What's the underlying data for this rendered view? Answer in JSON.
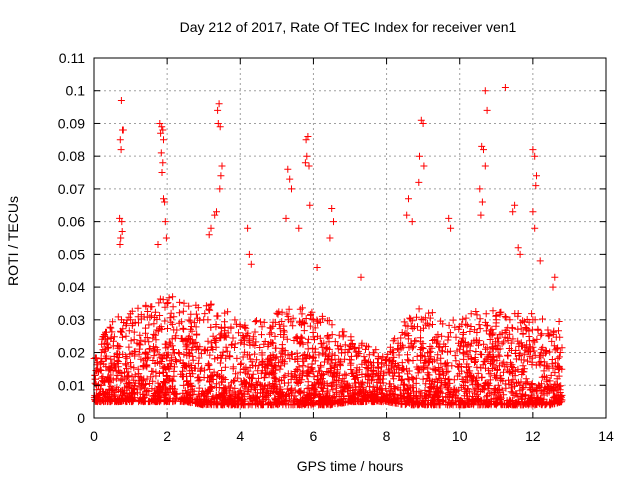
{
  "chart_data": {
    "type": "scatter",
    "title": "Day 212 of 2017, Rate Of TEC Index for receiver ven1",
    "xlabel": "GPS time / hours",
    "ylabel": "ROTI / TECUs",
    "xlim": [
      0,
      14
    ],
    "ylim": [
      0,
      0.11
    ],
    "x_ticks": [
      0,
      2,
      4,
      6,
      8,
      10,
      12,
      14
    ],
    "x_tick_labels": [
      "0",
      "2",
      "4",
      "6",
      "8",
      "10",
      "12",
      "14"
    ],
    "y_ticks": [
      0,
      0.01,
      0.02,
      0.03,
      0.04,
      0.05,
      0.06,
      0.07,
      0.08,
      0.09,
      0.1,
      0.11
    ],
    "y_tick_labels": [
      "0",
      "0.01",
      "0.02",
      "0.03",
      "0.04",
      "0.05",
      "0.06",
      "0.07",
      "0.08",
      "0.09",
      "0.1",
      "0.11"
    ],
    "grid": true,
    "marker": "plus",
    "marker_color": "#ff0000",
    "series": [
      {
        "name": "ROTI",
        "note": "dense band of roughly 3000+ points between 0.003 and 0.035 across 0-12.8 h; only representative points listed, remainder generated from the envelope below",
        "points": [
          [
            0.75,
            0.097
          ],
          [
            0.78,
            0.088
          ],
          [
            0.8,
            0.088
          ],
          [
            0.72,
            0.085
          ],
          [
            0.74,
            0.082
          ],
          [
            0.7,
            0.061
          ],
          [
            0.76,
            0.06
          ],
          [
            0.73,
            0.055
          ],
          [
            0.71,
            0.053
          ],
          [
            0.77,
            0.057
          ],
          [
            1.8,
            0.09
          ],
          [
            1.85,
            0.089
          ],
          [
            1.88,
            0.088
          ],
          [
            1.82,
            0.087
          ],
          [
            1.9,
            0.085
          ],
          [
            1.84,
            0.081
          ],
          [
            1.88,
            0.078
          ],
          [
            1.86,
            0.075
          ],
          [
            1.9,
            0.067
          ],
          [
            1.93,
            0.066
          ],
          [
            1.95,
            0.06
          ],
          [
            1.75,
            0.053
          ],
          [
            1.98,
            0.055
          ],
          [
            3.42,
            0.096
          ],
          [
            3.38,
            0.094
          ],
          [
            3.4,
            0.09
          ],
          [
            3.45,
            0.089
          ],
          [
            3.5,
            0.077
          ],
          [
            3.47,
            0.074
          ],
          [
            3.44,
            0.07
          ],
          [
            3.3,
            0.062
          ],
          [
            3.2,
            0.058
          ],
          [
            3.15,
            0.056
          ],
          [
            3.35,
            0.063
          ],
          [
            4.2,
            0.058
          ],
          [
            4.25,
            0.05
          ],
          [
            4.3,
            0.047
          ],
          [
            5.3,
            0.076
          ],
          [
            5.35,
            0.073
          ],
          [
            5.4,
            0.07
          ],
          [
            5.25,
            0.061
          ],
          [
            5.85,
            0.086
          ],
          [
            5.8,
            0.085
          ],
          [
            5.82,
            0.08
          ],
          [
            5.78,
            0.078
          ],
          [
            5.88,
            0.077
          ],
          [
            5.9,
            0.065
          ],
          [
            5.6,
            0.058
          ],
          [
            6.5,
            0.064
          ],
          [
            6.55,
            0.06
          ],
          [
            6.45,
            0.055
          ],
          [
            6.1,
            0.046
          ],
          [
            7.3,
            0.043
          ],
          [
            8.95,
            0.091
          ],
          [
            9.0,
            0.09
          ],
          [
            8.9,
            0.08
          ],
          [
            9.02,
            0.077
          ],
          [
            8.88,
            0.072
          ],
          [
            8.6,
            0.067
          ],
          [
            8.55,
            0.062
          ],
          [
            8.7,
            0.06
          ],
          [
            9.7,
            0.061
          ],
          [
            9.75,
            0.058
          ],
          [
            10.7,
            0.1
          ],
          [
            10.75,
            0.094
          ],
          [
            10.6,
            0.083
          ],
          [
            10.65,
            0.082
          ],
          [
            10.7,
            0.077
          ],
          [
            10.55,
            0.07
          ],
          [
            10.62,
            0.066
          ],
          [
            10.58,
            0.062
          ],
          [
            11.25,
            0.101
          ],
          [
            11.5,
            0.065
          ],
          [
            11.45,
            0.063
          ],
          [
            11.6,
            0.052
          ],
          [
            11.65,
            0.05
          ],
          [
            12.0,
            0.082
          ],
          [
            12.05,
            0.08
          ],
          [
            12.1,
            0.074
          ],
          [
            12.08,
            0.071
          ],
          [
            12.0,
            0.063
          ],
          [
            12.05,
            0.058
          ],
          [
            12.2,
            0.048
          ],
          [
            12.6,
            0.043
          ],
          [
            12.55,
            0.04
          ],
          [
            0.1,
            0.015
          ],
          [
            0.2,
            0.02
          ],
          [
            1.0,
            0.03
          ],
          [
            2.0,
            0.035
          ],
          [
            3.0,
            0.03
          ],
          [
            4.0,
            0.028
          ],
          [
            5.0,
            0.032
          ],
          [
            6.0,
            0.03
          ],
          [
            7.0,
            0.022
          ],
          [
            8.0,
            0.018
          ],
          [
            9.0,
            0.03
          ],
          [
            10.0,
            0.028
          ],
          [
            11.0,
            0.03
          ],
          [
            12.0,
            0.03
          ],
          [
            12.75,
            0.02
          ]
        ],
        "envelope": {
          "x": [
            0,
            0.5,
            1,
            1.5,
            2,
            2.5,
            3,
            3.5,
            4,
            4.5,
            5,
            5.5,
            6,
            6.5,
            7,
            7.5,
            8,
            8.5,
            9,
            9.5,
            10,
            10.5,
            11,
            11.5,
            12,
            12.5,
            12.8
          ],
          "low": [
            0.005,
            0.005,
            0.005,
            0.005,
            0.005,
            0.005,
            0.004,
            0.004,
            0.004,
            0.004,
            0.004,
            0.004,
            0.004,
            0.004,
            0.005,
            0.005,
            0.005,
            0.004,
            0.004,
            0.004,
            0.004,
            0.004,
            0.004,
            0.004,
            0.004,
            0.004,
            0.005
          ],
          "high": [
            0.02,
            0.03,
            0.033,
            0.035,
            0.038,
            0.035,
            0.035,
            0.035,
            0.03,
            0.03,
            0.033,
            0.035,
            0.033,
            0.03,
            0.025,
            0.022,
            0.02,
            0.03,
            0.035,
            0.03,
            0.03,
            0.033,
            0.033,
            0.032,
            0.032,
            0.03,
            0.03
          ]
        },
        "generated_point_count": 3200
      }
    ]
  }
}
